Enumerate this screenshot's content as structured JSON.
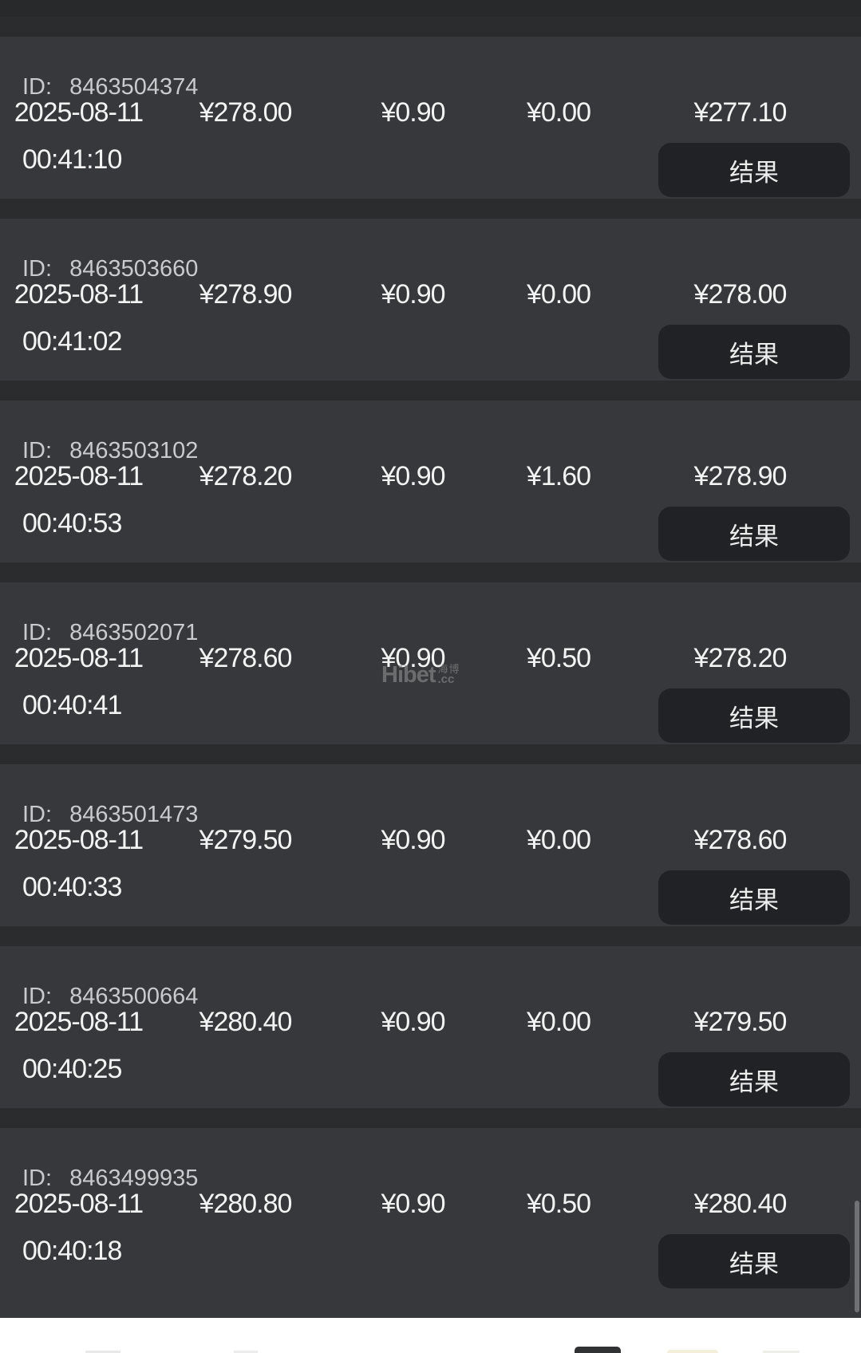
{
  "labels": {
    "id": "ID:",
    "result": "结果"
  },
  "rows": [
    {
      "id": "8463504374",
      "date": "2025-08-11",
      "time": "00:41:10",
      "amounts": [
        "¥278.00",
        "¥0.90",
        "¥0.00",
        "¥277.10"
      ]
    },
    {
      "id": "8463503660",
      "date": "2025-08-11",
      "time": "00:41:02",
      "amounts": [
        "¥278.90",
        "¥0.90",
        "¥0.00",
        "¥278.00"
      ]
    },
    {
      "id": "8463503102",
      "date": "2025-08-11",
      "time": "00:40:53",
      "amounts": [
        "¥278.20",
        "¥0.90",
        "¥1.60",
        "¥278.90"
      ]
    },
    {
      "id": "8463502071",
      "date": "2025-08-11",
      "time": "00:40:41",
      "amounts": [
        "¥278.60",
        "¥0.90",
        "¥0.50",
        "¥278.20"
      ]
    },
    {
      "id": "8463501473",
      "date": "2025-08-11",
      "time": "00:40:33",
      "amounts": [
        "¥279.50",
        "¥0.90",
        "¥0.00",
        "¥278.60"
      ]
    },
    {
      "id": "8463500664",
      "date": "2025-08-11",
      "time": "00:40:25",
      "amounts": [
        "¥280.40",
        "¥0.90",
        "¥0.00",
        "¥279.50"
      ]
    },
    {
      "id": "8463499935",
      "date": "2025-08-11",
      "time": "00:40:18",
      "amounts": [
        "¥280.80",
        "¥0.90",
        "¥0.50",
        "¥280.40"
      ]
    }
  ],
  "watermark": {
    "brand": "Hibet",
    "cn": "海博",
    "cc": ".cc"
  },
  "colors": {
    "card_bg": "#36383b",
    "separator": "#2b2c2e",
    "button_bg": "#212225",
    "text_primary": "#f3f3f4",
    "text_id": "#c9cacc",
    "bottom_bar": "#ffffff"
  }
}
